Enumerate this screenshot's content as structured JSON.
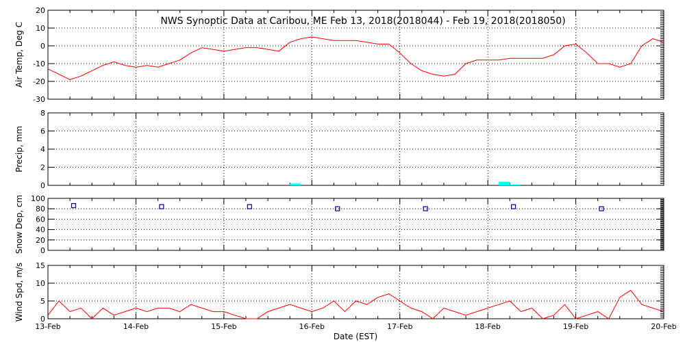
{
  "chart_data": {
    "type": "line",
    "title": "NWS Synoptic Data at Caribou, ME   Feb 13, 2018(2018044) - Feb 19, 2018(2018050)",
    "xlabel": "Date (EST)",
    "x_tick_labels": [
      "13-Feb",
      "14-Feb",
      "15-Feb",
      "16-Feb",
      "17-Feb",
      "18-Feb",
      "19-Feb",
      "20-Feb"
    ],
    "xlim": [
      "2018-02-13 00:00",
      "2018-02-20 00:00"
    ],
    "grid": true,
    "colors": {
      "line": "#ff0000",
      "precip": "#00ffff",
      "snow_marker": "#000099",
      "axes": "#000000"
    },
    "panels": [
      {
        "id": "air_temp",
        "type": "line",
        "ylabel": "Air Temp, Deg C",
        "ylim": [
          -30,
          20
        ],
        "yticks": [
          -30,
          -20,
          -10,
          0,
          10,
          20
        ],
        "x": [
          "2018-02-13 00:00",
          "2018-02-13 03:00",
          "2018-02-13 06:00",
          "2018-02-13 09:00",
          "2018-02-13 12:00",
          "2018-02-13 15:00",
          "2018-02-13 18:00",
          "2018-02-13 21:00",
          "2018-02-14 00:00",
          "2018-02-14 03:00",
          "2018-02-14 06:00",
          "2018-02-14 09:00",
          "2018-02-14 12:00",
          "2018-02-14 15:00",
          "2018-02-14 18:00",
          "2018-02-14 21:00",
          "2018-02-15 00:00",
          "2018-02-15 03:00",
          "2018-02-15 06:00",
          "2018-02-15 09:00",
          "2018-02-15 12:00",
          "2018-02-15 15:00",
          "2018-02-15 18:00",
          "2018-02-15 21:00",
          "2018-02-16 00:00",
          "2018-02-16 03:00",
          "2018-02-16 06:00",
          "2018-02-16 09:00",
          "2018-02-16 12:00",
          "2018-02-16 15:00",
          "2018-02-16 18:00",
          "2018-02-16 21:00",
          "2018-02-17 00:00",
          "2018-02-17 03:00",
          "2018-02-17 06:00",
          "2018-02-17 09:00",
          "2018-02-17 12:00",
          "2018-02-17 15:00",
          "2018-02-17 18:00",
          "2018-02-17 21:00",
          "2018-02-18 00:00",
          "2018-02-18 03:00",
          "2018-02-18 06:00",
          "2018-02-18 09:00",
          "2018-02-18 12:00",
          "2018-02-18 15:00",
          "2018-02-18 18:00",
          "2018-02-18 21:00",
          "2018-02-19 00:00",
          "2018-02-19 03:00",
          "2018-02-19 06:00",
          "2018-02-19 09:00",
          "2018-02-19 12:00",
          "2018-02-19 15:00",
          "2018-02-19 18:00",
          "2018-02-19 21:00",
          "2018-02-20 00:00"
        ],
        "values": [
          -13,
          -16,
          -19,
          -17,
          -14,
          -11,
          -9,
          -11,
          -12,
          -11,
          -12,
          -10,
          -8,
          -4,
          -1,
          -2,
          -3,
          -2,
          -1,
          -1,
          -2,
          -3,
          2,
          4,
          5,
          4,
          3,
          3,
          3,
          2,
          1,
          1,
          -4,
          -10,
          -14,
          -16,
          -17,
          -16,
          -10,
          -8,
          -8,
          -8,
          -7,
          -7,
          -7,
          -7,
          -5,
          0,
          1,
          -4,
          -10,
          -10,
          -12,
          -10,
          0,
          4,
          2
        ],
        "marker": "none"
      },
      {
        "id": "precip",
        "type": "bar",
        "ylabel": "Precip, mm",
        "ylim": [
          0,
          8
        ],
        "yticks": [
          0,
          2,
          4,
          6,
          8
        ],
        "x": [
          "2018-02-15 18:00",
          "2018-02-16 00:00",
          "2018-02-18 03:00",
          "2018-02-18 06:00"
        ],
        "values": [
          0.2,
          0.0,
          0.4,
          0.1
        ],
        "bar_hours": 3
      },
      {
        "id": "snow_depth",
        "type": "scatter",
        "ylabel": "Snow Dep, cm",
        "ylim": [
          0,
          100
        ],
        "yticks": [
          0,
          20,
          40,
          60,
          80,
          100
        ],
        "x": [
          "2018-02-13 07:00",
          "2018-02-14 07:00",
          "2018-02-15 07:00",
          "2018-02-16 07:00",
          "2018-02-17 07:00",
          "2018-02-18 07:00",
          "2018-02-19 07:00"
        ],
        "values": [
          86,
          84,
          84,
          80,
          80,
          84,
          80
        ],
        "marker": "square"
      },
      {
        "id": "wind_speed",
        "type": "line",
        "ylabel": "Wind Spd, m/s",
        "ylim": [
          0,
          15
        ],
        "yticks": [
          0,
          5,
          10,
          15
        ],
        "x": [
          "2018-02-13 00:00",
          "2018-02-13 03:00",
          "2018-02-13 06:00",
          "2018-02-13 09:00",
          "2018-02-13 12:00",
          "2018-02-13 15:00",
          "2018-02-13 18:00",
          "2018-02-13 21:00",
          "2018-02-14 00:00",
          "2018-02-14 03:00",
          "2018-02-14 06:00",
          "2018-02-14 09:00",
          "2018-02-14 12:00",
          "2018-02-14 15:00",
          "2018-02-14 18:00",
          "2018-02-14 21:00",
          "2018-02-15 00:00",
          "2018-02-15 03:00",
          "2018-02-15 06:00",
          "2018-02-15 09:00",
          "2018-02-15 12:00",
          "2018-02-15 15:00",
          "2018-02-15 18:00",
          "2018-02-15 21:00",
          "2018-02-16 00:00",
          "2018-02-16 03:00",
          "2018-02-16 06:00",
          "2018-02-16 09:00",
          "2018-02-16 12:00",
          "2018-02-16 15:00",
          "2018-02-16 18:00",
          "2018-02-16 21:00",
          "2018-02-17 00:00",
          "2018-02-17 03:00",
          "2018-02-17 06:00",
          "2018-02-17 09:00",
          "2018-02-17 12:00",
          "2018-02-17 15:00",
          "2018-02-17 18:00",
          "2018-02-17 21:00",
          "2018-02-18 00:00",
          "2018-02-18 03:00",
          "2018-02-18 06:00",
          "2018-02-18 09:00",
          "2018-02-18 12:00",
          "2018-02-18 15:00",
          "2018-02-18 18:00",
          "2018-02-18 21:00",
          "2018-02-19 00:00",
          "2018-02-19 03:00",
          "2018-02-19 06:00",
          "2018-02-19 09:00",
          "2018-02-19 12:00",
          "2018-02-19 15:00",
          "2018-02-19 18:00",
          "2018-02-19 21:00",
          "2018-02-20 00:00"
        ],
        "values": [
          1,
          5,
          2,
          3,
          0,
          3,
          1,
          2,
          3,
          2,
          3,
          3,
          2,
          4,
          3,
          2,
          2,
          1,
          0,
          0,
          2,
          3,
          4,
          3,
          2,
          3,
          5,
          2,
          5,
          4,
          6,
          7,
          5,
          3,
          2,
          0,
          3,
          2,
          1,
          2,
          3,
          4,
          5,
          2,
          3,
          0,
          1,
          4,
          0,
          1,
          2,
          0,
          6,
          8,
          4,
          3,
          2
        ],
        "marker": "none"
      }
    ]
  }
}
